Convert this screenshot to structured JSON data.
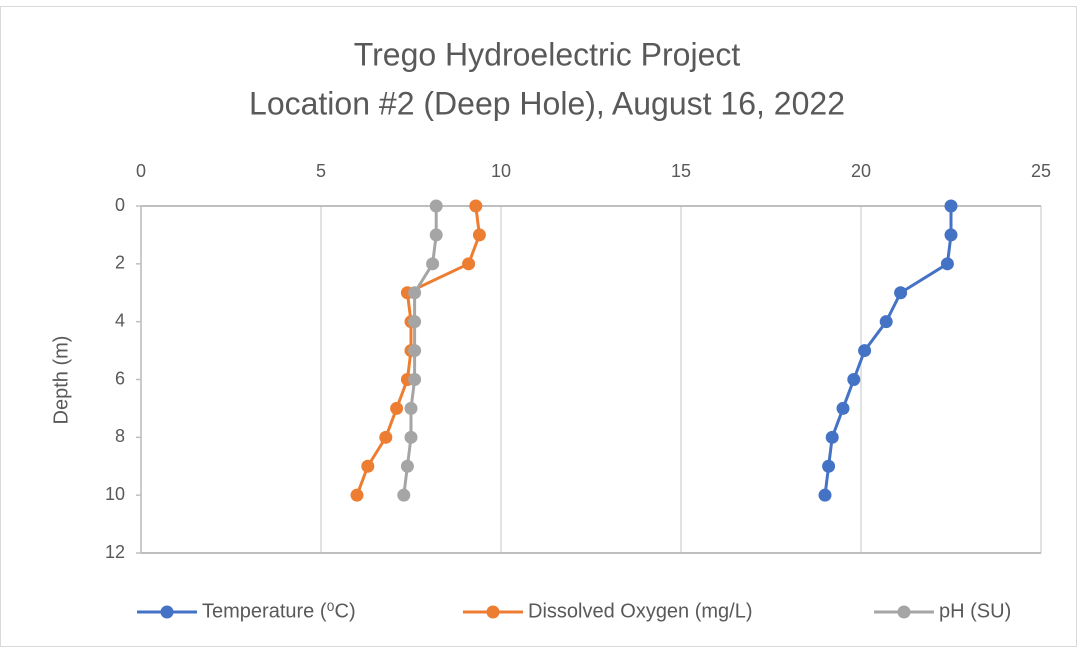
{
  "chart_data": {
    "type": "line",
    "title": "Trego Hydroelectric Project",
    "subtitle": "Location #2 (Deep Hole), August 16, 2022",
    "y_label": "Depth (m)",
    "y": [
      0,
      1,
      2,
      3,
      4,
      5,
      6,
      7,
      8,
      9,
      10
    ],
    "series": [
      {
        "name": "Temperature (⁰C)",
        "color": "#4472c4",
        "values": [
          22.5,
          22.5,
          22.4,
          21.1,
          20.7,
          20.1,
          19.8,
          19.5,
          19.2,
          19.1,
          19.0
        ]
      },
      {
        "name": "Dissolved Oxygen (mg/L)",
        "color": "#ed7d31",
        "values": [
          9.3,
          9.4,
          9.1,
          7.4,
          7.5,
          7.5,
          7.4,
          7.1,
          6.8,
          6.3,
          6.0
        ]
      },
      {
        "name": "pH (SU)",
        "color": "#a5a5a5",
        "values": [
          8.2,
          8.2,
          8.1,
          7.6,
          7.6,
          7.6,
          7.6,
          7.5,
          7.5,
          7.4,
          7.3
        ]
      }
    ],
    "xlim": [
      0,
      25
    ],
    "xticks": [
      0,
      5,
      10,
      15,
      20,
      25
    ],
    "ylim": [
      0,
      12
    ],
    "yticks": [
      0,
      2,
      4,
      6,
      8,
      10,
      12
    ],
    "y_inverted": true,
    "x_axis_position": "top",
    "grid": "x",
    "legend": "bottom"
  }
}
